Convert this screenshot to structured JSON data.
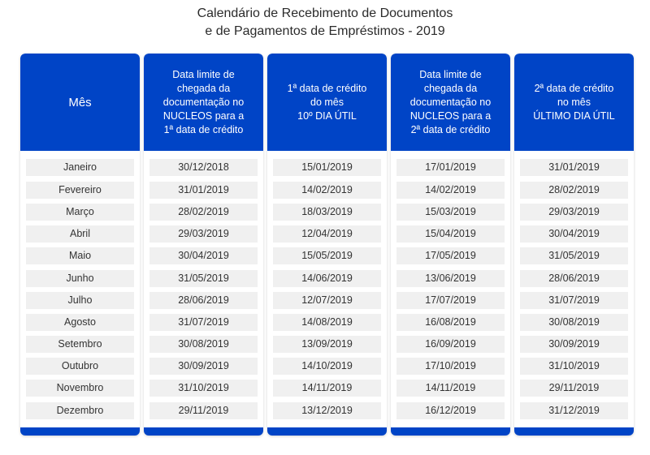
{
  "title": {
    "line1": "Calendário de Recebimento de Documentos",
    "line2": "e de Pagamentos de Empréstimos - 2019"
  },
  "colors": {
    "header": "#0044c6",
    "cell": "#f0f0f0"
  },
  "columns": [
    {
      "id": "mes",
      "header": [
        "Mês"
      ]
    },
    {
      "id": "limite1",
      "header": [
        "Data limite de",
        "chegada da",
        "documentação no",
        "NUCLEOS para a",
        "1ª data de crédito"
      ]
    },
    {
      "id": "credito1",
      "header": [
        "1ª data de crédito",
        "do mês",
        "10º DIA ÚTIL"
      ]
    },
    {
      "id": "limite2",
      "header": [
        "Data limite de",
        "chegada da",
        "documentação no",
        "NUCLEOS para a",
        "2ª data de crédito"
      ]
    },
    {
      "id": "credito2",
      "header": [
        "2ª data de crédito",
        "no mês",
        "ÚLTIMO DIA ÚTIL"
      ]
    }
  ],
  "rows": [
    [
      "Janeiro",
      "30/12/2018",
      "15/01/2019",
      "17/01/2019",
      "31/01/2019"
    ],
    [
      "Fevereiro",
      "31/01/2019",
      "14/02/2019",
      "14/02/2019",
      "28/02/2019"
    ],
    [
      "Março",
      "28/02/2019",
      "18/03/2019",
      "15/03/2019",
      "29/03/2019"
    ],
    [
      "Abril",
      "29/03/2019",
      "12/04/2019",
      "15/04/2019",
      "30/04/2019"
    ],
    [
      "Maio",
      "30/04/2019",
      "15/05/2019",
      "17/05/2019",
      "31/05/2019"
    ],
    [
      "Junho",
      "31/05/2019",
      "14/06/2019",
      "13/06/2019",
      "28/06/2019"
    ],
    [
      "Julho",
      "28/06/2019",
      "12/07/2019",
      "17/07/2019",
      "31/07/2019"
    ],
    [
      "Agosto",
      "31/07/2019",
      "14/08/2019",
      "16/08/2019",
      "30/08/2019"
    ],
    [
      "Setembro",
      "30/08/2019",
      "13/09/2019",
      "16/09/2019",
      "30/09/2019"
    ],
    [
      "Outubro",
      "30/09/2019",
      "14/10/2019",
      "17/10/2019",
      "31/10/2019"
    ],
    [
      "Novembro",
      "31/10/2019",
      "14/11/2019",
      "14/11/2019",
      "29/11/2019"
    ],
    [
      "Dezembro",
      "29/11/2019",
      "13/12/2019",
      "16/12/2019",
      "31/12/2019"
    ]
  ]
}
